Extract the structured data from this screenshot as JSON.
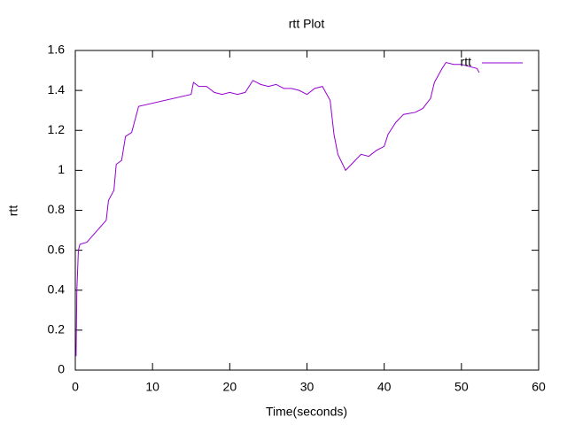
{
  "chart_data": {
    "type": "line",
    "title": "rtt Plot",
    "x_label": "Time(seconds)",
    "y_label": "rtt",
    "x": [
      0.1,
      0.2,
      0.4,
      0.6,
      1.5,
      4,
      4.3,
      5,
      5.3,
      6,
      6.5,
      7.3,
      8.2,
      15,
      15.3,
      16,
      17,
      18,
      19,
      20,
      21,
      22,
      23,
      24,
      25,
      26,
      27,
      28,
      29,
      30,
      31,
      32,
      33,
      33.5,
      34,
      35,
      35.5,
      36,
      37,
      38,
      39,
      40,
      40.5,
      41.5,
      42.5,
      44,
      45,
      46,
      46.5,
      47.5,
      48,
      49,
      50,
      51,
      52,
      52.3
    ],
    "series": [
      {
        "name": "rtt",
        "color": "#9400d3",
        "values": [
          0.07,
          0.4,
          0.6,
          0.63,
          0.64,
          0.75,
          0.85,
          0.9,
          1.03,
          1.05,
          1.17,
          1.19,
          1.32,
          1.38,
          1.44,
          1.42,
          1.42,
          1.39,
          1.38,
          1.39,
          1.38,
          1.39,
          1.45,
          1.43,
          1.42,
          1.43,
          1.41,
          1.41,
          1.4,
          1.38,
          1.41,
          1.42,
          1.35,
          1.18,
          1.08,
          1.0,
          1.02,
          1.04,
          1.08,
          1.07,
          1.1,
          1.12,
          1.18,
          1.24,
          1.28,
          1.29,
          1.31,
          1.36,
          1.44,
          1.51,
          1.54,
          1.53,
          1.53,
          1.52,
          1.51,
          1.49
        ]
      }
    ],
    "xlim": [
      0,
      60
    ],
    "xticks": [
      0,
      10,
      20,
      30,
      40,
      50,
      60
    ],
    "ylim": [
      0,
      1.6
    ],
    "yticks": [
      0,
      0.2,
      0.4,
      0.6,
      0.8,
      1,
      1.2,
      1.4,
      1.6
    ],
    "grid": false,
    "legend": "top-right"
  }
}
